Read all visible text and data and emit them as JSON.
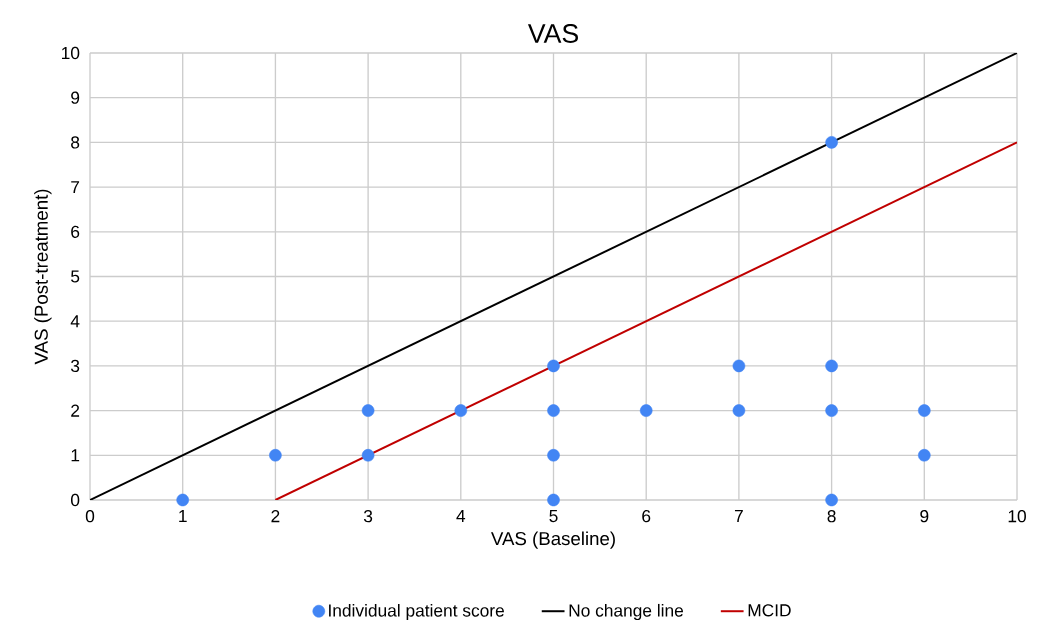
{
  "chart_data": {
    "type": "scatter",
    "title": "VAS",
    "xlabel": "VAS (Baseline)",
    "ylabel": "VAS (Post-treatment)",
    "xlim": [
      0,
      10
    ],
    "ylim": [
      0,
      10
    ],
    "xticks": [
      0,
      1,
      2,
      3,
      4,
      5,
      6,
      7,
      8,
      9,
      10
    ],
    "yticks": [
      0,
      1,
      2,
      3,
      4,
      5,
      6,
      7,
      8,
      9,
      10
    ],
    "grid": true,
    "legend": "bottom",
    "series": [
      {
        "name": "Individual patient score",
        "marker": "circle",
        "color": "#4285f4",
        "x": [
          1,
          2,
          3,
          3,
          4,
          5,
          5,
          5,
          5,
          6,
          7,
          7,
          8,
          8,
          8,
          8,
          9,
          9
        ],
        "values": [
          0,
          1,
          2,
          1,
          2,
          3,
          2,
          1,
          0,
          2,
          3,
          2,
          8,
          3,
          2,
          0,
          2,
          1
        ]
      },
      {
        "name": "No change line",
        "type": "line",
        "marker": "none",
        "line_style": "solid",
        "color": "#000000",
        "x": [
          0,
          10
        ],
        "values": [
          0,
          10
        ]
      },
      {
        "name": "MCID",
        "type": "line",
        "marker": "none",
        "line_style": "solid",
        "color": "#c00000",
        "x": [
          2,
          10
        ],
        "values": [
          0,
          8
        ]
      }
    ]
  }
}
